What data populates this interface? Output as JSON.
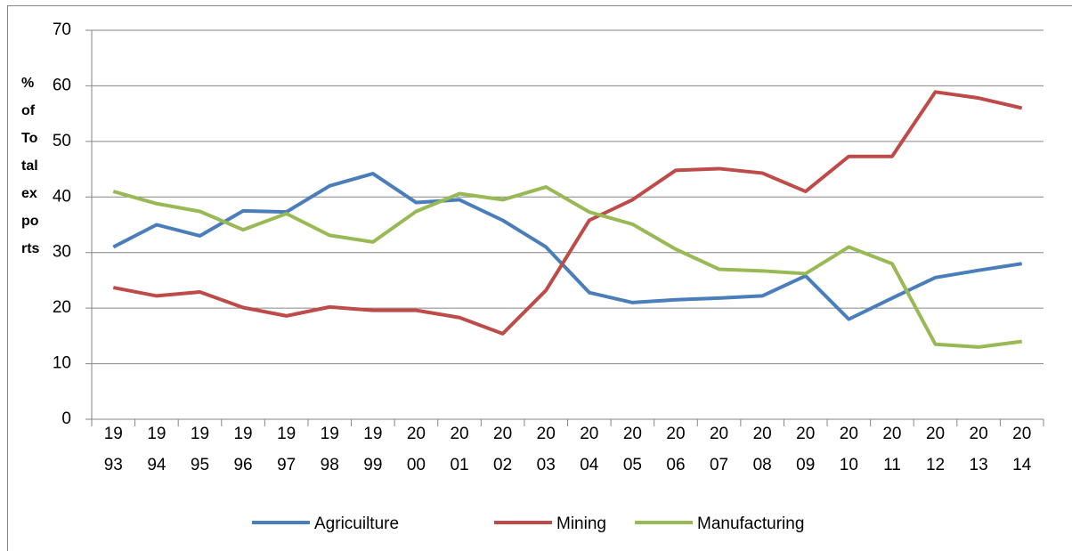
{
  "chart_data": {
    "type": "line",
    "y_label": "% of Total exports",
    "categories": [
      "1993",
      "1994",
      "1995",
      "1996",
      "1997",
      "1998",
      "1999",
      "2000",
      "2001",
      "2002",
      "2003",
      "2004",
      "2005",
      "2006",
      "2007",
      "2008",
      "2009",
      "2010",
      "2011",
      "2012",
      "2013",
      "2014"
    ],
    "series": [
      {
        "name": "Agricuilture",
        "color": "#4a7ebb",
        "values": [
          31,
          35,
          33,
          37.5,
          37.3,
          42,
          44.2,
          39,
          39.5,
          35.8,
          31,
          22.8,
          21,
          21.5,
          21.8,
          22.2,
          25.8,
          18,
          21.8,
          25.5,
          26.8,
          28
        ]
      },
      {
        "name": "Mining",
        "color": "#be4b48",
        "values": [
          23.7,
          22.2,
          22.9,
          20.1,
          18.6,
          20.2,
          19.6,
          19.6,
          18.3,
          15.4,
          23.2,
          35.8,
          39.5,
          44.8,
          45.1,
          44.3,
          41,
          47.3,
          47.3,
          58.9,
          57.8,
          56
        ]
      },
      {
        "name": "Manufacturing",
        "color": "#98b954",
        "values": [
          41,
          38.8,
          37.4,
          34.1,
          37,
          33.1,
          31.9,
          37.4,
          40.6,
          39.5,
          41.8,
          37.3,
          35.1,
          30.6,
          27,
          26.7,
          26.2,
          31,
          28,
          13.5,
          13,
          14
        ]
      }
    ],
    "ylim": [
      0,
      70
    ],
    "yticks": [
      0,
      10,
      20,
      30,
      40,
      50,
      60,
      70
    ],
    "grid": true,
    "legend": "bottom"
  }
}
